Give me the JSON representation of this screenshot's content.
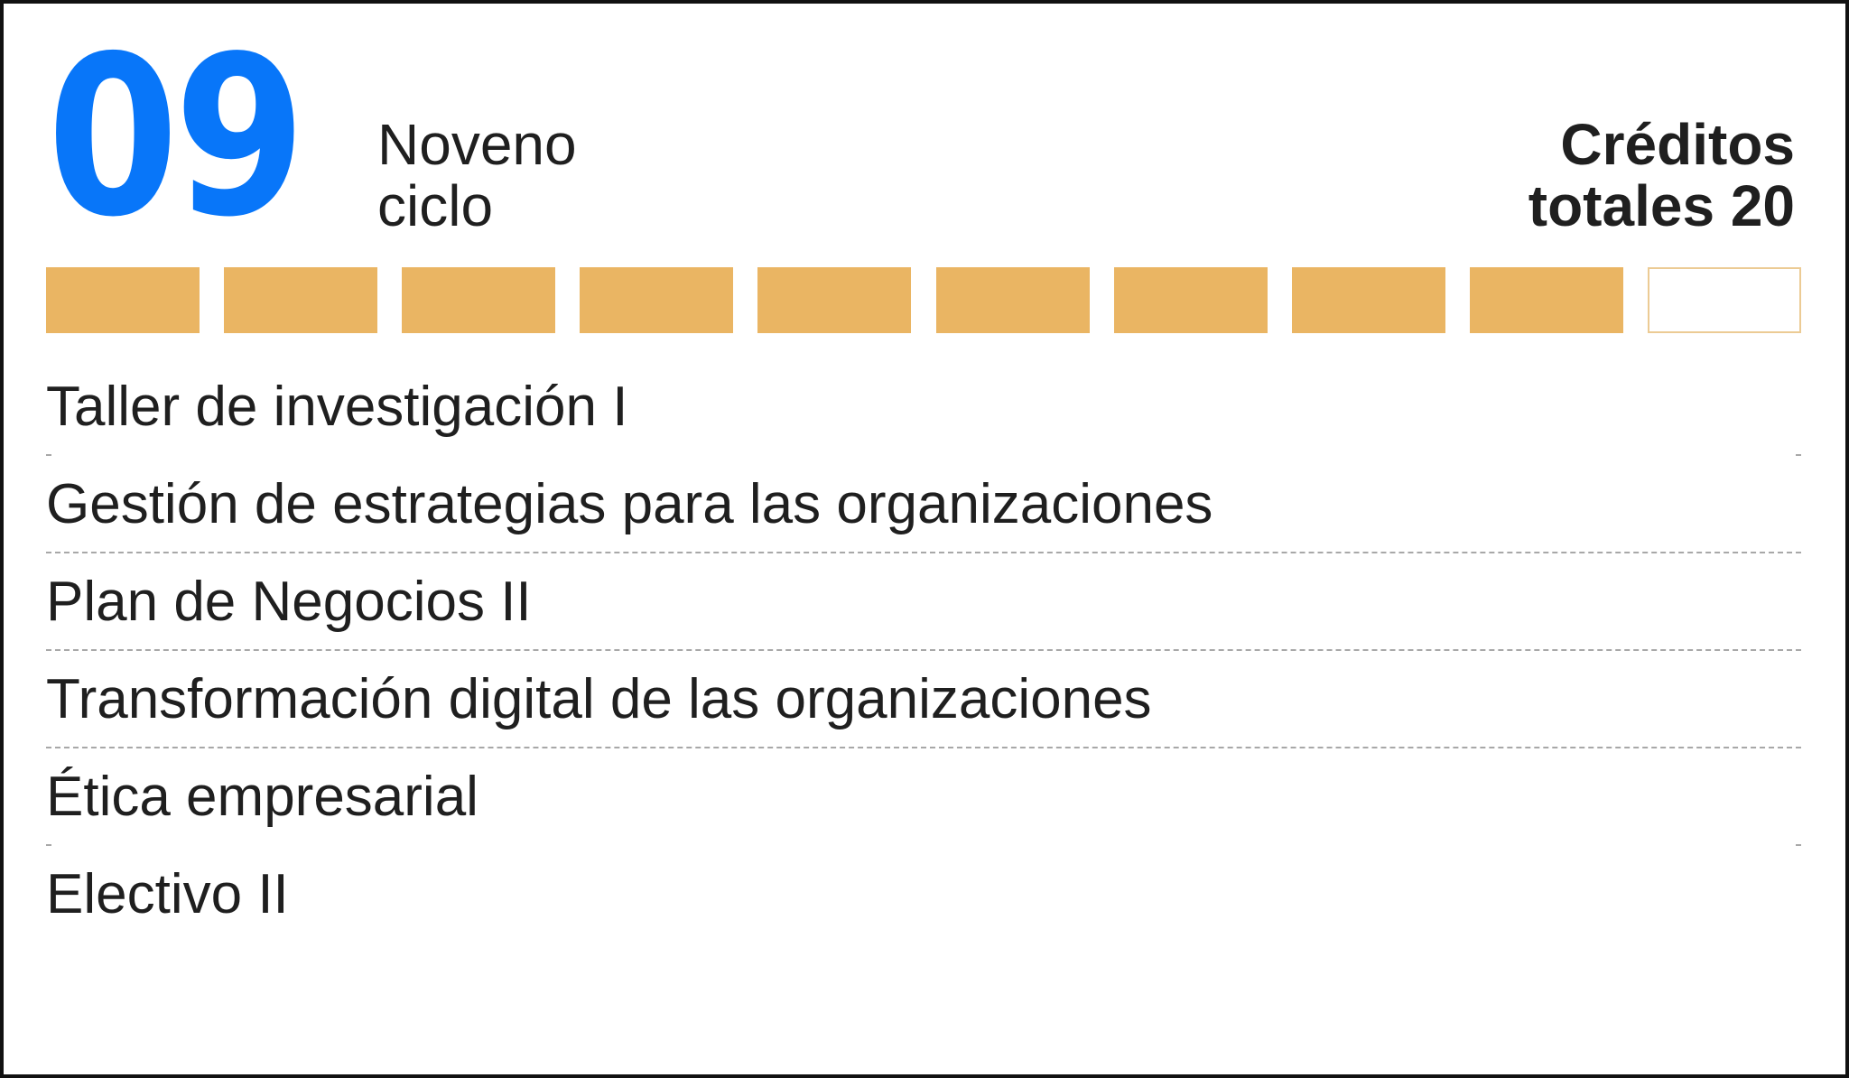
{
  "header": {
    "cycle_number": "09",
    "cycle_name_line1": "Noveno",
    "cycle_name_line2": "ciclo",
    "credits_line1": "Créditos",
    "credits_line2": "totales 20"
  },
  "progress": {
    "filled": 9,
    "total": 10,
    "fill_color": "#eab563"
  },
  "courses": [
    "Taller de investigación I",
    "Gestión de estrategias para las organizaciones",
    "Plan de Negocios II",
    "Transformación digital de las organizaciones",
    "Ética empresarial",
    "Electivo II"
  ],
  "colors": {
    "accent": "#0876f9",
    "progress_fill": "#eab563",
    "text": "#1f1f1f",
    "border": "#111111"
  }
}
